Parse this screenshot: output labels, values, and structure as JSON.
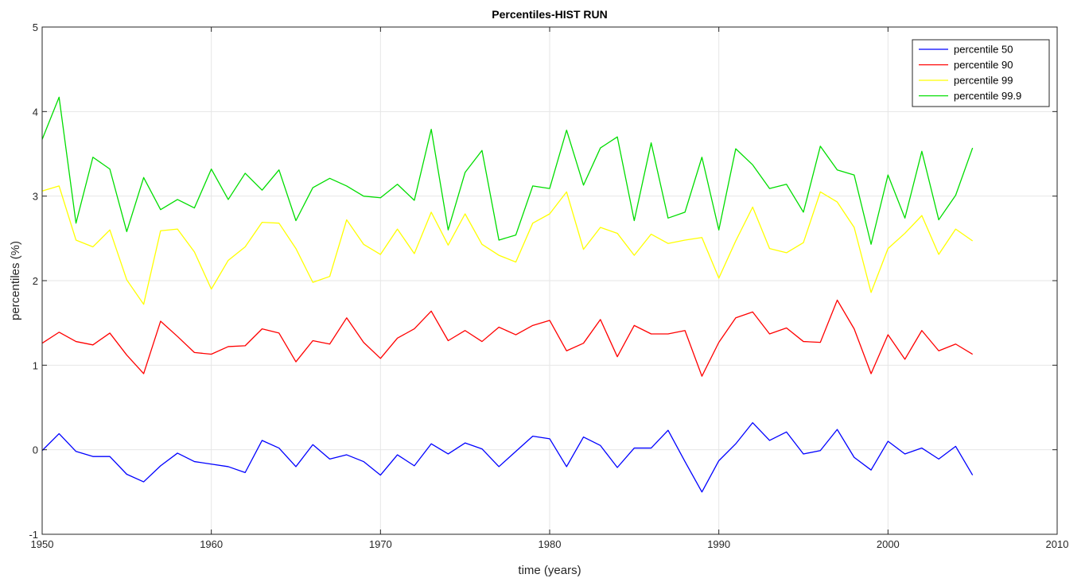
{
  "chart_data": {
    "type": "line",
    "title": "Percentiles-HIST RUN",
    "xlabel": "time (years)",
    "ylabel": "percentiles (%)",
    "xlim": [
      1950,
      2010
    ],
    "ylim": [
      -1,
      5
    ],
    "xticks": [
      1950,
      1960,
      1970,
      1980,
      1990,
      2000,
      2010
    ],
    "yticks": [
      -1,
      0,
      1,
      2,
      3,
      4,
      5
    ],
    "grid": true,
    "legend_position": "top-right",
    "x": [
      1950,
      1951,
      1952,
      1953,
      1954,
      1955,
      1956,
      1957,
      1958,
      1959,
      1960,
      1961,
      1962,
      1963,
      1964,
      1965,
      1966,
      1967,
      1968,
      1969,
      1970,
      1971,
      1972,
      1973,
      1974,
      1975,
      1976,
      1977,
      1978,
      1979,
      1980,
      1981,
      1982,
      1983,
      1984,
      1985,
      1986,
      1987,
      1988,
      1989,
      1990,
      1991,
      1992,
      1993,
      1994,
      1995,
      1996,
      1997,
      1998,
      1999,
      2000,
      2001,
      2002,
      2003,
      2004,
      2005
    ],
    "series": [
      {
        "name": "percentile 50",
        "color": "#0000ff",
        "values": [
          -0.01,
          0.19,
          -0.02,
          -0.08,
          -0.08,
          -0.29,
          -0.38,
          -0.19,
          -0.04,
          -0.14,
          -0.17,
          -0.2,
          -0.27,
          0.11,
          0.02,
          -0.2,
          0.06,
          -0.11,
          -0.06,
          -0.14,
          -0.3,
          -0.06,
          -0.19,
          0.07,
          -0.05,
          0.08,
          0.01,
          -0.2,
          -0.02,
          0.16,
          0.13,
          -0.2,
          0.15,
          0.05,
          -0.21,
          0.02,
          0.02,
          0.23,
          -0.14,
          -0.5,
          -0.13,
          0.07,
          0.32,
          0.11,
          0.21,
          -0.05,
          -0.01,
          0.24,
          -0.09,
          -0.24,
          0.1,
          -0.05,
          0.02,
          -0.11,
          0.04,
          -0.3
        ]
      },
      {
        "name": "percentile 90",
        "color": "#ff0000",
        "values": [
          1.26,
          1.39,
          1.28,
          1.24,
          1.38,
          1.12,
          0.9,
          1.52,
          1.34,
          1.15,
          1.13,
          1.22,
          1.23,
          1.43,
          1.38,
          1.04,
          1.29,
          1.25,
          1.56,
          1.27,
          1.08,
          1.32,
          1.43,
          1.64,
          1.29,
          1.41,
          1.28,
          1.45,
          1.36,
          1.47,
          1.53,
          1.17,
          1.26,
          1.54,
          1.1,
          1.47,
          1.37,
          1.37,
          1.41,
          0.87,
          1.27,
          1.56,
          1.63,
          1.37,
          1.44,
          1.28,
          1.27,
          1.77,
          1.43,
          0.9,
          1.36,
          1.07,
          1.41,
          1.17,
          1.25,
          1.13
        ]
      },
      {
        "name": "percentile 99",
        "color": "#ffff00",
        "values": [
          3.06,
          3.12,
          2.48,
          2.4,
          2.6,
          2.01,
          1.72,
          2.59,
          2.61,
          2.34,
          1.9,
          2.24,
          2.4,
          2.69,
          2.68,
          2.38,
          1.98,
          2.05,
          2.72,
          2.43,
          2.31,
          2.61,
          2.32,
          2.81,
          2.42,
          2.79,
          2.43,
          2.3,
          2.22,
          2.68,
          2.79,
          3.05,
          2.37,
          2.63,
          2.56,
          2.3,
          2.55,
          2.44,
          2.48,
          2.51,
          2.03,
          2.47,
          2.87,
          2.38,
          2.33,
          2.45,
          3.05,
          2.93,
          2.63,
          1.86,
          2.38,
          2.56,
          2.77,
          2.31,
          2.61,
          2.47
        ]
      },
      {
        "name": "percentile 99.9",
        "color": "#00dd00",
        "values": [
          3.67,
          4.17,
          2.68,
          3.46,
          3.32,
          2.58,
          3.22,
          2.84,
          2.96,
          2.86,
          3.32,
          2.96,
          3.27,
          3.07,
          3.31,
          2.71,
          3.1,
          3.21,
          3.12,
          3.0,
          2.98,
          3.14,
          2.95,
          3.79,
          2.6,
          3.28,
          3.54,
          2.48,
          2.54,
          3.12,
          3.09,
          3.78,
          3.13,
          3.57,
          3.7,
          2.71,
          3.63,
          2.74,
          2.81,
          3.46,
          2.6,
          3.56,
          3.37,
          3.09,
          3.14,
          2.81,
          3.59,
          3.31,
          3.25,
          2.43,
          3.25,
          2.74,
          3.53,
          2.72,
          3.01,
          3.57
        ]
      }
    ],
    "colors": {
      "grid": "#e6e6e6",
      "axis": "#262626",
      "background": "#ffffff"
    }
  }
}
